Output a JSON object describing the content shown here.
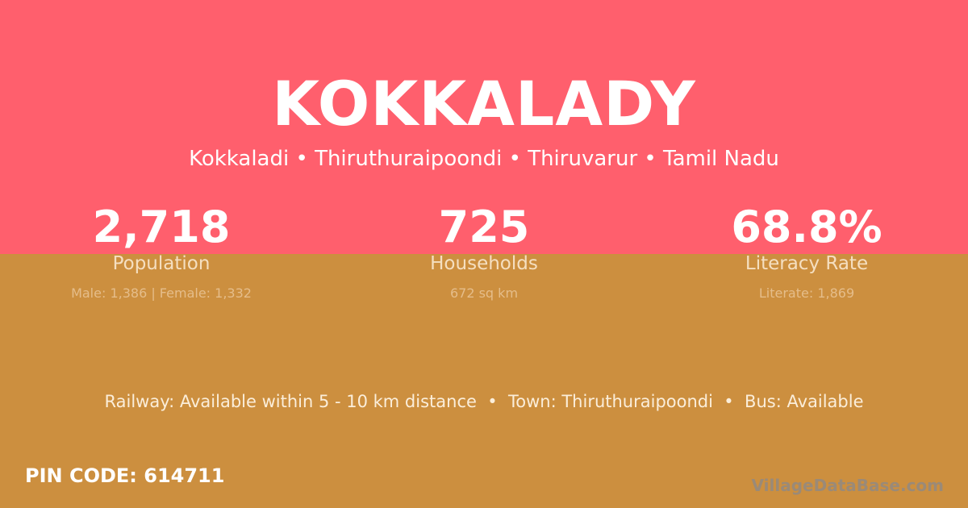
{
  "colors": {
    "top": "#ff5f6d",
    "bottom": "#cc8f3f"
  },
  "title": "KOKKALADY",
  "subtitle": "Kokkaladi • Thiruthuraipoondi • Thiruvarur • Tamil Nadu",
  "stats": [
    {
      "value": "2,718",
      "label": "Population",
      "detail": "Male: 1,386 | Female: 1,332"
    },
    {
      "value": "725",
      "label": "Households",
      "detail": "672 sq km"
    },
    {
      "value": "68.8%",
      "label": "Literacy Rate",
      "detail": "Literate: 1,869"
    }
  ],
  "info": "Railway: Available within 5 - 10 km distance  •  Town: Thiruthuraipoondi  •  Bus: Available",
  "pin": "PIN CODE: 614711",
  "logo": "VillageDataBase.com"
}
